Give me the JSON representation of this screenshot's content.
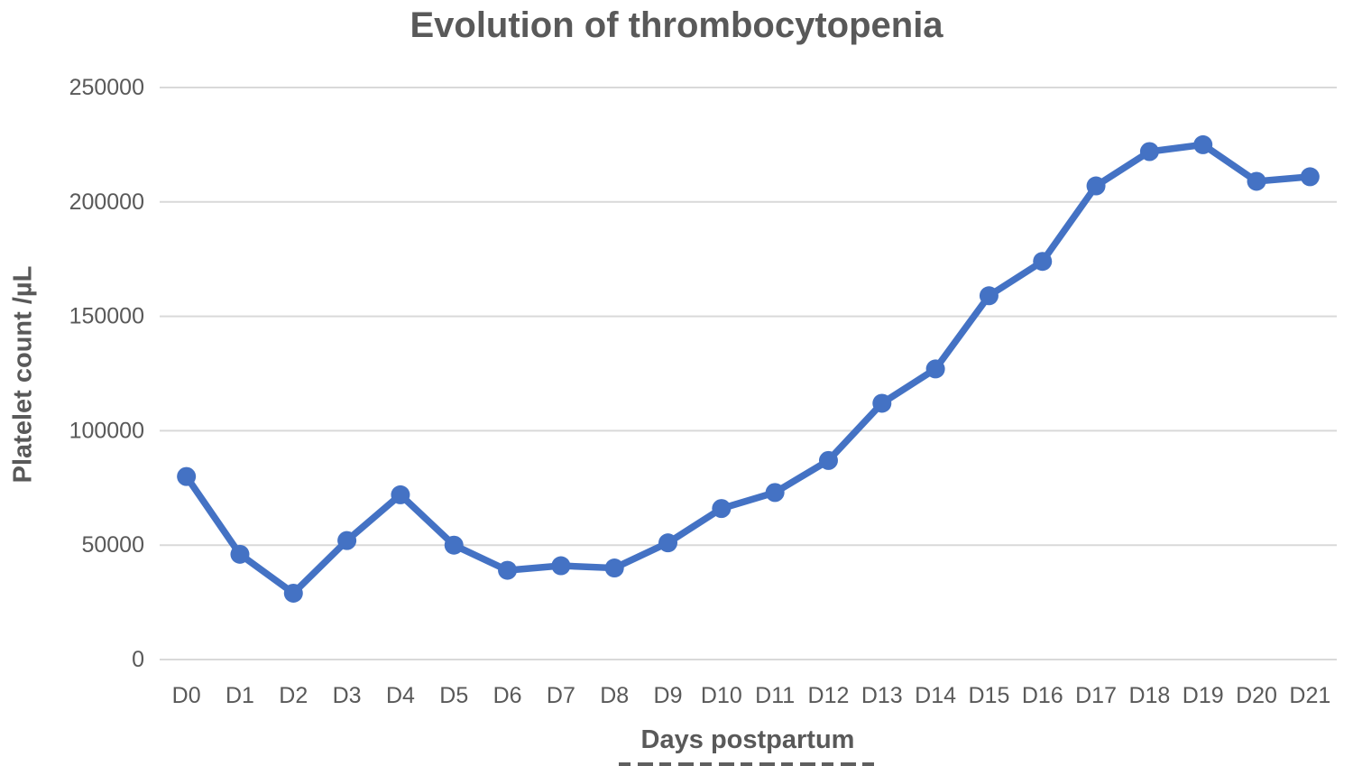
{
  "chart_data": {
    "type": "line",
    "title": "Evolution of thrombocytopenia",
    "xlabel": "Days postpartum",
    "ylabel": "Platelet count /µL",
    "categories": [
      "D0",
      "D1",
      "D2",
      "D3",
      "D4",
      "D5",
      "D6",
      "D7",
      "D8",
      "D9",
      "D10",
      "D11",
      "D12",
      "D13",
      "D14",
      "D15",
      "D16",
      "D17",
      "D18",
      "D19",
      "D20",
      "D21"
    ],
    "series": [
      {
        "name": "Platelet count",
        "values": [
          80000,
          46000,
          29000,
          52000,
          72000,
          50000,
          39000,
          41000,
          40000,
          51000,
          66000,
          73000,
          87000,
          112000,
          127000,
          159000,
          174000,
          207000,
          222000,
          225000,
          209000,
          211000
        ]
      }
    ],
    "ylim": [
      0,
      250000
    ],
    "yticks": [
      0,
      50000,
      100000,
      150000,
      200000,
      250000
    ],
    "grid": true,
    "legend": false,
    "marker": "circle",
    "line_color": "#4472C4",
    "gridline_color": "#D9D9D9",
    "text_color": "#595959"
  }
}
